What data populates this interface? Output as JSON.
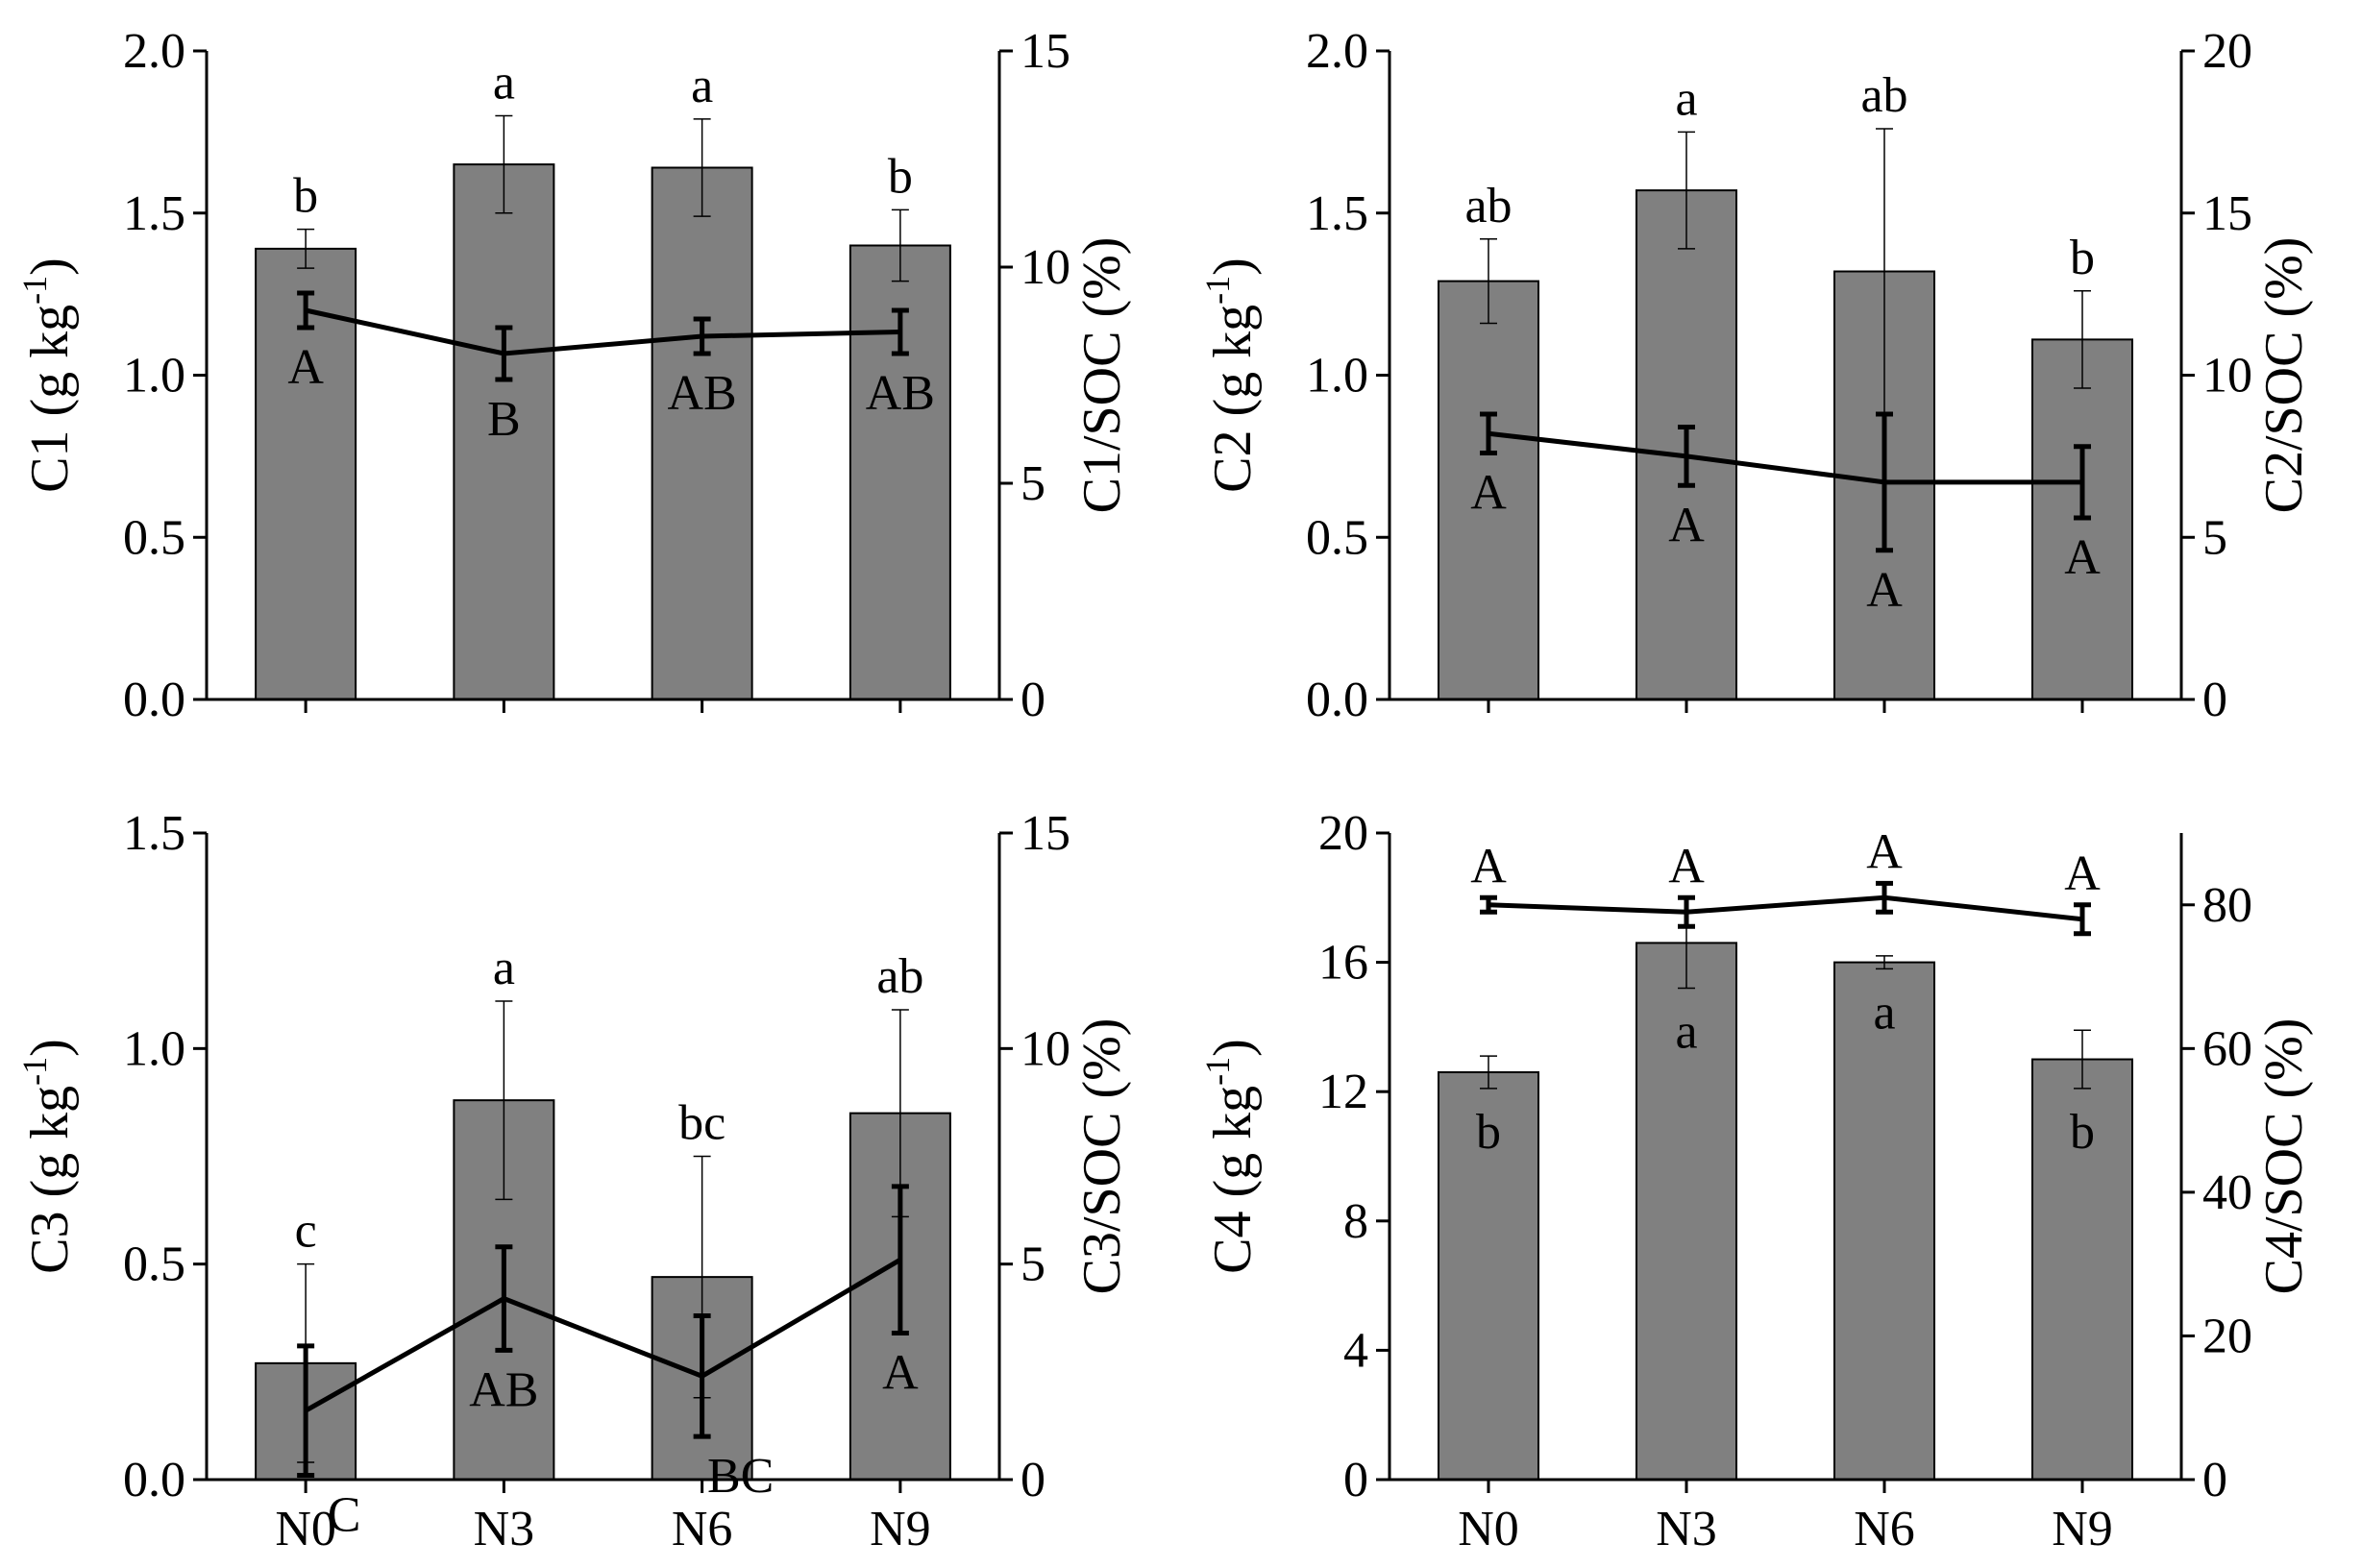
{
  "chart_data": [
    {
      "type": "bar",
      "panel": "C1",
      "categories": [
        "N0",
        "N3",
        "N6",
        "N9"
      ],
      "ylabel_main": "C1 (g kg",
      "ylabel_sup": "-1",
      "ylabel_close": ")",
      "y2label": "C1/SOC (%)",
      "ylim": [
        0,
        2.0
      ],
      "yticks": [
        "0.0",
        "0.5",
        "1.0",
        "1.5",
        "2.0"
      ],
      "y2lim": [
        0,
        15
      ],
      "y2ticks": [
        "0",
        "5",
        "10",
        "15"
      ],
      "bar_values": [
        1.39,
        1.65,
        1.64,
        1.4
      ],
      "bar_errors": [
        0.06,
        0.15,
        0.15,
        0.11
      ],
      "bar_letters": [
        "b",
        "a",
        "a",
        "b"
      ],
      "line_values": [
        9.0,
        8.0,
        8.4,
        8.5
      ],
      "line_errors": [
        0.4,
        0.6,
        0.4,
        0.5
      ],
      "line_letters": [
        "A",
        "B",
        "AB",
        "AB"
      ]
    },
    {
      "type": "bar",
      "panel": "C2",
      "categories": [
        "N0",
        "N3",
        "N6",
        "N9"
      ],
      "ylabel_main": "C2 (g kg",
      "ylabel_sup": "-1",
      "ylabel_close": ")",
      "y2label": "C2/SOC (%)",
      "ylim": [
        0,
        2.0
      ],
      "yticks": [
        "0.0",
        "0.5",
        "1.0",
        "1.5",
        "2.0"
      ],
      "y2lim": [
        0,
        20
      ],
      "y2ticks": [
        "0",
        "5",
        "10",
        "15",
        "20"
      ],
      "bar_values": [
        1.29,
        1.57,
        1.32,
        1.11
      ],
      "bar_errors": [
        0.13,
        0.18,
        0.44,
        0.15
      ],
      "bar_letters": [
        "ab",
        "a",
        "ab",
        "b"
      ],
      "line_values": [
        8.2,
        7.5,
        6.7,
        6.7
      ],
      "line_errors": [
        0.6,
        0.9,
        2.1,
        1.1
      ],
      "line_letters": [
        "A",
        "A",
        "A",
        "A"
      ]
    },
    {
      "type": "bar",
      "panel": "C3",
      "categories": [
        "N0",
        "N3",
        "N6",
        "N9"
      ],
      "ylabel_main": "C3 (g kg",
      "ylabel_sup": "-1",
      "ylabel_close": ")",
      "y2label": "C3/SOC (%)",
      "ylim": [
        0,
        1.5
      ],
      "yticks": [
        "0.0",
        "0.5",
        "1.0",
        "1.5"
      ],
      "y2lim": [
        0,
        15
      ],
      "y2ticks": [
        "0",
        "5",
        "10",
        "15"
      ],
      "bar_values": [
        0.27,
        0.88,
        0.47,
        0.85
      ],
      "bar_errors": [
        0.23,
        0.23,
        0.28,
        0.24
      ],
      "bar_letters": [
        "c",
        "a",
        "bc",
        "ab"
      ],
      "line_values": [
        1.6,
        4.2,
        2.4,
        5.1
      ],
      "line_errors": [
        1.5,
        1.2,
        1.4,
        1.7
      ],
      "line_letters": [
        "C",
        "AB",
        "BC",
        "A"
      ]
    },
    {
      "type": "bar",
      "panel": "C4",
      "categories": [
        "N0",
        "N3",
        "N6",
        "N9"
      ],
      "ylabel_main": "C4 (g kg",
      "ylabel_sup": "-1",
      "ylabel_close": ")",
      "y2label": "C4/SOC (%)",
      "ylim": [
        0,
        20
      ],
      "yticks": [
        "0",
        "4",
        "8",
        "12",
        "16",
        "20"
      ],
      "y2lim": [
        0,
        90
      ],
      "y2ticks": [
        "0",
        "20",
        "40",
        "60",
        "80"
      ],
      "bar_values": [
        12.6,
        16.6,
        16.0,
        13.0
      ],
      "bar_errors": [
        0.5,
        1.4,
        0.2,
        0.9
      ],
      "bar_letters": [
        "b",
        "a",
        "a",
        "b"
      ],
      "line_values": [
        80.0,
        79.0,
        81.0,
        78.0
      ],
      "line_errors": [
        1.0,
        2.0,
        2.0,
        2.0
      ],
      "line_letters": [
        "A",
        "A",
        "A",
        "A"
      ]
    }
  ]
}
